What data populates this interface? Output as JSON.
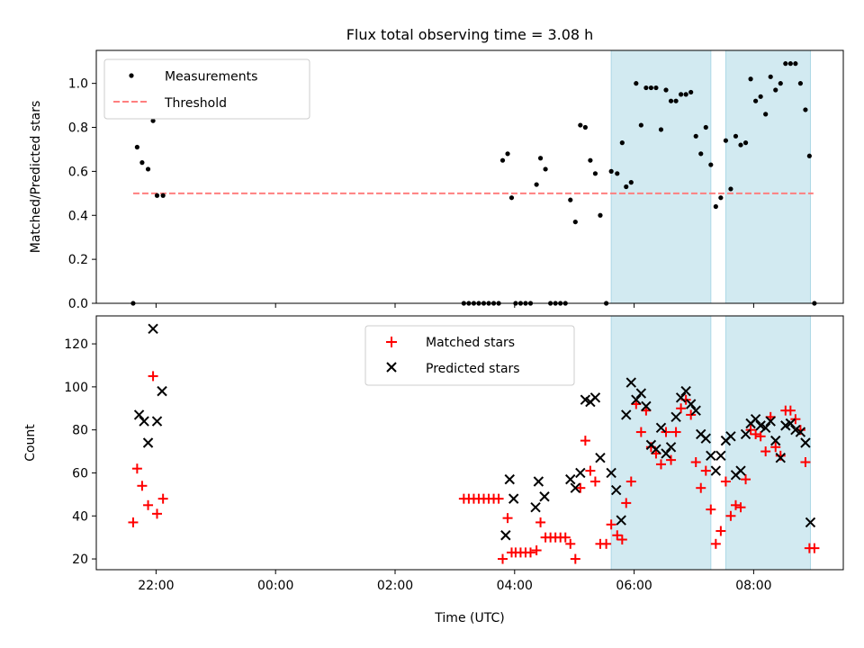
{
  "title": "Flux total observing time = 3.08 h",
  "xlabel": "Time (UTC)",
  "x_ticks": [
    "22:00",
    "00:00",
    "02:00",
    "04:00",
    "06:00",
    "08:00"
  ],
  "colors": {
    "threshold": "#ff7f7f",
    "shade": "#add8e6",
    "matched": "#ff0000",
    "predicted": "#000000",
    "measurements": "#000000"
  },
  "chart_data": [
    {
      "type": "scatter",
      "title": "Flux total observing time = 3.08 h",
      "ylabel": "Matched/Predicted stars",
      "ylim": [
        0,
        1.15
      ],
      "y_ticks": [
        "0.0",
        "0.2",
        "0.4",
        "0.6",
        "0.8",
        "1.0"
      ],
      "xlim_hours_utc": [
        "21:00",
        "09:30"
      ],
      "legend_position": "upper-left",
      "legend": [
        "Measurements",
        "Threshold"
      ],
      "threshold": {
        "value": 0.5,
        "x_start": "21:37",
        "x_end": "09:00"
      },
      "shaded_intervals": [
        [
          "05:37",
          "07:17"
        ],
        [
          "07:32",
          "08:57"
        ]
      ],
      "measurements": [
        [
          "21:37",
          0.0
        ],
        [
          "21:41",
          0.71
        ],
        [
          "21:46",
          0.64
        ],
        [
          "21:52",
          0.61
        ],
        [
          "21:57",
          0.83
        ],
        [
          "22:01",
          0.49
        ],
        [
          "22:07",
          0.49
        ],
        [
          "03:09",
          0.0
        ],
        [
          "03:14",
          0.0
        ],
        [
          "03:19",
          0.0
        ],
        [
          "03:24",
          0.0
        ],
        [
          "03:29",
          0.0
        ],
        [
          "03:34",
          0.0
        ],
        [
          "03:39",
          0.0
        ],
        [
          "03:44",
          0.0
        ],
        [
          "03:48",
          0.65
        ],
        [
          "03:53",
          0.68
        ],
        [
          "03:57",
          0.48
        ],
        [
          "04:01",
          0.0
        ],
        [
          "04:06",
          0.0
        ],
        [
          "04:11",
          0.0
        ],
        [
          "04:16",
          0.0
        ],
        [
          "04:22",
          0.54
        ],
        [
          "04:26",
          0.66
        ],
        [
          "04:31",
          0.61
        ],
        [
          "04:36",
          0.0
        ],
        [
          "04:41",
          0.0
        ],
        [
          "04:46",
          0.0
        ],
        [
          "04:51",
          0.0
        ],
        [
          "04:56",
          0.47
        ],
        [
          "05:01",
          0.37
        ],
        [
          "05:06",
          0.81
        ],
        [
          "05:11",
          0.8
        ],
        [
          "05:16",
          0.65
        ],
        [
          "05:21",
          0.59
        ],
        [
          "05:26",
          0.4
        ],
        [
          "05:32",
          0.0
        ],
        [
          "05:37",
          0.6
        ],
        [
          "05:43",
          0.59
        ],
        [
          "05:48",
          0.73
        ],
        [
          "05:52",
          0.53
        ],
        [
          "05:57",
          0.55
        ],
        [
          "06:02",
          1.0
        ],
        [
          "06:07",
          0.81
        ],
        [
          "06:12",
          0.98
        ],
        [
          "06:17",
          0.98
        ],
        [
          "06:22",
          0.98
        ],
        [
          "06:27",
          0.79
        ],
        [
          "06:32",
          0.97
        ],
        [
          "06:37",
          0.92
        ],
        [
          "06:42",
          0.92
        ],
        [
          "06:47",
          0.95
        ],
        [
          "06:52",
          0.95
        ],
        [
          "06:57",
          0.96
        ],
        [
          "07:02",
          0.76
        ],
        [
          "07:07",
          0.68
        ],
        [
          "07:12",
          0.8
        ],
        [
          "07:17",
          0.63
        ],
        [
          "07:22",
          0.44
        ],
        [
          "07:27",
          0.48
        ],
        [
          "07:32",
          0.74
        ],
        [
          "07:37",
          0.52
        ],
        [
          "07:42",
          0.76
        ],
        [
          "07:47",
          0.72
        ],
        [
          "07:52",
          0.73
        ],
        [
          "07:57",
          1.02
        ],
        [
          "08:02",
          0.92
        ],
        [
          "08:07",
          0.94
        ],
        [
          "08:12",
          0.86
        ],
        [
          "08:17",
          1.03
        ],
        [
          "08:22",
          0.97
        ],
        [
          "08:27",
          1.0
        ],
        [
          "08:32",
          1.09
        ],
        [
          "08:37",
          1.09
        ],
        [
          "08:42",
          1.09
        ],
        [
          "08:47",
          1.0
        ],
        [
          "08:52",
          0.88
        ],
        [
          "08:56",
          0.67
        ],
        [
          "09:01",
          0.0
        ]
      ]
    },
    {
      "type": "scatter",
      "ylabel": "Count",
      "ylim": [
        15,
        133
      ],
      "y_ticks": [
        "20",
        "40",
        "60",
        "80",
        "100",
        "120"
      ],
      "legend_position": "upper-center",
      "legend": [
        "Matched stars",
        "Predicted stars"
      ],
      "shaded_intervals": [
        [
          "05:37",
          "07:17"
        ],
        [
          "07:32",
          "08:57"
        ]
      ],
      "matched": [
        [
          "21:37",
          37
        ],
        [
          "21:41",
          62
        ],
        [
          "21:46",
          54
        ],
        [
          "21:52",
          45
        ],
        [
          "21:57",
          105
        ],
        [
          "22:01",
          41
        ],
        [
          "22:07",
          48
        ],
        [
          "03:09",
          48
        ],
        [
          "03:14",
          48
        ],
        [
          "03:19",
          48
        ],
        [
          "03:24",
          48
        ],
        [
          "03:29",
          48
        ],
        [
          "03:34",
          48
        ],
        [
          "03:39",
          48
        ],
        [
          "03:44",
          48
        ],
        [
          "03:48",
          20
        ],
        [
          "03:53",
          39
        ],
        [
          "03:57",
          23
        ],
        [
          "04:01",
          23
        ],
        [
          "04:06",
          23
        ],
        [
          "04:11",
          23
        ],
        [
          "04:16",
          23
        ],
        [
          "04:22",
          24
        ],
        [
          "04:26",
          37
        ],
        [
          "04:31",
          30
        ],
        [
          "04:36",
          30
        ],
        [
          "04:41",
          30
        ],
        [
          "04:46",
          30
        ],
        [
          "04:51",
          30
        ],
        [
          "04:56",
          27
        ],
        [
          "05:01",
          20
        ],
        [
          "05:06",
          53
        ],
        [
          "05:11",
          75
        ],
        [
          "05:16",
          61
        ],
        [
          "05:21",
          56
        ],
        [
          "05:26",
          27
        ],
        [
          "05:32",
          27
        ],
        [
          "05:37",
          36
        ],
        [
          "05:43",
          31
        ],
        [
          "05:48",
          29
        ],
        [
          "05:52",
          46
        ],
        [
          "05:57",
          56
        ],
        [
          "06:02",
          92
        ],
        [
          "06:07",
          79
        ],
        [
          "06:12",
          89
        ],
        [
          "06:17",
          72
        ],
        [
          "06:22",
          69
        ],
        [
          "06:27",
          64
        ],
        [
          "06:32",
          79
        ],
        [
          "06:37",
          66
        ],
        [
          "06:42",
          79
        ],
        [
          "06:47",
          90
        ],
        [
          "06:52",
          94
        ],
        [
          "06:57",
          87
        ],
        [
          "07:02",
          65
        ],
        [
          "07:07",
          53
        ],
        [
          "07:12",
          61
        ],
        [
          "07:17",
          43
        ],
        [
          "07:22",
          27
        ],
        [
          "07:27",
          33
        ],
        [
          "07:32",
          56
        ],
        [
          "07:37",
          40
        ],
        [
          "07:42",
          45
        ],
        [
          "07:47",
          44
        ],
        [
          "07:52",
          57
        ],
        [
          "07:57",
          80
        ],
        [
          "08:02",
          78
        ],
        [
          "08:07",
          77
        ],
        [
          "08:12",
          70
        ],
        [
          "08:17",
          86
        ],
        [
          "08:22",
          72
        ],
        [
          "08:27",
          68
        ],
        [
          "08:32",
          89
        ],
        [
          "08:37",
          89
        ],
        [
          "08:42",
          85
        ],
        [
          "08:47",
          80
        ],
        [
          "08:52",
          65
        ],
        [
          "08:56",
          25
        ],
        [
          "09:01",
          25
        ]
      ],
      "predicted": [
        [
          "21:43",
          87
        ],
        [
          "21:48",
          84
        ],
        [
          "21:52",
          74
        ],
        [
          "21:57",
          127
        ],
        [
          "22:01",
          84
        ],
        [
          "22:06",
          98
        ],
        [
          "03:51",
          31
        ],
        [
          "03:55",
          57
        ],
        [
          "03:59",
          48
        ],
        [
          "04:24",
          56
        ],
        [
          "04:30",
          49
        ],
        [
          "04:21",
          44
        ],
        [
          "04:56",
          57
        ],
        [
          "05:01",
          53
        ],
        [
          "05:06",
          60
        ],
        [
          "05:11",
          94
        ],
        [
          "05:16",
          93
        ],
        [
          "05:21",
          95
        ],
        [
          "05:26",
          67
        ],
        [
          "05:37",
          60
        ],
        [
          "05:42",
          52
        ],
        [
          "05:47",
          38
        ],
        [
          "05:52",
          87
        ],
        [
          "05:57",
          102
        ],
        [
          "06:02",
          94
        ],
        [
          "06:07",
          97
        ],
        [
          "06:12",
          91
        ],
        [
          "06:17",
          73
        ],
        [
          "06:22",
          71
        ],
        [
          "06:27",
          81
        ],
        [
          "06:32",
          69
        ],
        [
          "06:37",
          72
        ],
        [
          "06:42",
          86
        ],
        [
          "06:47",
          95
        ],
        [
          "06:52",
          98
        ],
        [
          "06:57",
          92
        ],
        [
          "07:02",
          89
        ],
        [
          "07:07",
          78
        ],
        [
          "07:12",
          76
        ],
        [
          "07:17",
          68
        ],
        [
          "07:22",
          61
        ],
        [
          "07:27",
          68
        ],
        [
          "07:32",
          75
        ],
        [
          "07:37",
          77
        ],
        [
          "07:42",
          59
        ],
        [
          "07:47",
          61
        ],
        [
          "07:52",
          78
        ],
        [
          "07:57",
          83
        ],
        [
          "08:02",
          85
        ],
        [
          "08:07",
          82
        ],
        [
          "08:12",
          81
        ],
        [
          "08:17",
          84
        ],
        [
          "08:22",
          75
        ],
        [
          "08:27",
          67
        ],
        [
          "08:32",
          82
        ],
        [
          "08:37",
          83
        ],
        [
          "08:42",
          80
        ],
        [
          "08:47",
          79
        ],
        [
          "08:52",
          74
        ],
        [
          "08:57",
          37
        ]
      ]
    }
  ]
}
